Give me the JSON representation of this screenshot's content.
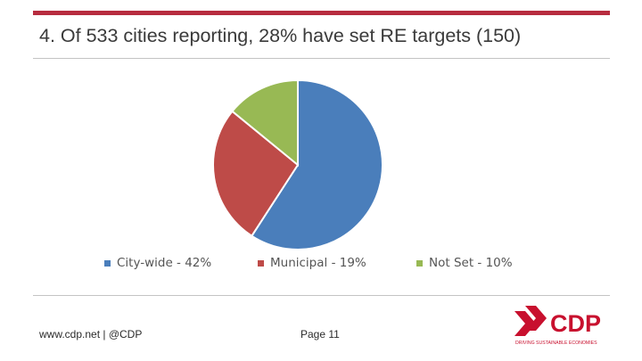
{
  "slide": {
    "title": "4. Of 533 cities reporting, 28% have set RE targets (150)",
    "footer_link": "www.cdp.net | @CDP",
    "page_label": "Page 11",
    "logo_text": "CDP",
    "logo_tagline": "DRIVING SUSTAINABLE ECONOMIES"
  },
  "colors": {
    "accent": "#b72c3f",
    "logo_red": "#c8102e"
  },
  "chart_data": {
    "type": "pie",
    "title": "",
    "legend_position": "bottom",
    "series": [
      {
        "name": "City-wide - 42%",
        "value": 42,
        "color": "#4a7ebb"
      },
      {
        "name": "Municipal - 19%",
        "value": 19,
        "color": "#be4b48"
      },
      {
        "name": "Not Set - 10%",
        "value": 10,
        "color": "#98b954"
      }
    ]
  }
}
